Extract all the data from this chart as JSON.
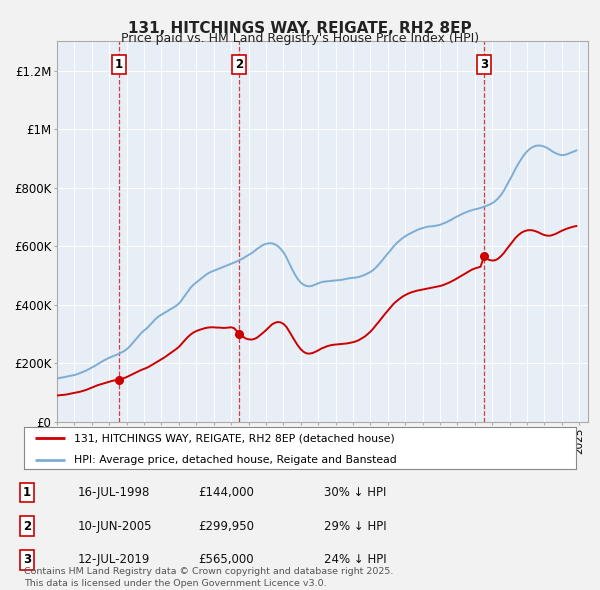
{
  "title": "131, HITCHINGS WAY, REIGATE, RH2 8EP",
  "subtitle": "Price paid vs. HM Land Registry's House Price Index (HPI)",
  "xlim_start": 1995.0,
  "xlim_end": 2025.5,
  "ylim_min": 0,
  "ylim_max": 1300000,
  "background_color": "#f2f2f2",
  "plot_bg_color": "#e8eef5",
  "sale_dates_num": [
    1998.54,
    2005.44,
    2019.53
  ],
  "sale_prices": [
    144000,
    299950,
    565000
  ],
  "sale_labels": [
    "1",
    "2",
    "3"
  ],
  "hpi_line_color": "#7dadd4",
  "price_line_color": "#cc0000",
  "legend_entries": [
    "131, HITCHINGS WAY, REIGATE, RH2 8EP (detached house)",
    "HPI: Average price, detached house, Reigate and Banstead"
  ],
  "footer_lines": [
    "Contains HM Land Registry data © Crown copyright and database right 2025.",
    "This data is licensed under the Open Government Licence v3.0."
  ],
  "table_rows": [
    [
      "1",
      "16-JUL-1998",
      "£144,000",
      "30% ↓ HPI"
    ],
    [
      "2",
      "10-JUN-2005",
      "£299,950",
      "29% ↓ HPI"
    ],
    [
      "3",
      "12-JUL-2019",
      "£565,000",
      "24% ↓ HPI"
    ]
  ],
  "yticks": [
    0,
    200000,
    400000,
    600000,
    800000,
    1000000,
    1200000
  ],
  "ytick_labels": [
    "£0",
    "£200K",
    "£400K",
    "£600K",
    "£800K",
    "£1M",
    "£1.2M"
  ],
  "hpi_x": [
    1995.0,
    1995.17,
    1995.33,
    1995.5,
    1995.67,
    1995.83,
    1996.0,
    1996.17,
    1996.33,
    1996.5,
    1996.67,
    1996.83,
    1997.0,
    1997.17,
    1997.33,
    1997.5,
    1997.67,
    1997.83,
    1998.0,
    1998.17,
    1998.33,
    1998.5,
    1998.67,
    1998.83,
    1999.0,
    1999.17,
    1999.33,
    1999.5,
    1999.67,
    1999.83,
    2000.0,
    2000.17,
    2000.33,
    2000.5,
    2000.67,
    2000.83,
    2001.0,
    2001.17,
    2001.33,
    2001.5,
    2001.67,
    2001.83,
    2002.0,
    2002.17,
    2002.33,
    2002.5,
    2002.67,
    2002.83,
    2003.0,
    2003.17,
    2003.33,
    2003.5,
    2003.67,
    2003.83,
    2004.0,
    2004.17,
    2004.33,
    2004.5,
    2004.67,
    2004.83,
    2005.0,
    2005.17,
    2005.33,
    2005.5,
    2005.67,
    2005.83,
    2006.0,
    2006.17,
    2006.33,
    2006.5,
    2006.67,
    2006.83,
    2007.0,
    2007.17,
    2007.33,
    2007.5,
    2007.67,
    2007.83,
    2008.0,
    2008.17,
    2008.33,
    2008.5,
    2008.67,
    2008.83,
    2009.0,
    2009.17,
    2009.33,
    2009.5,
    2009.67,
    2009.83,
    2010.0,
    2010.17,
    2010.33,
    2010.5,
    2010.67,
    2010.83,
    2011.0,
    2011.17,
    2011.33,
    2011.5,
    2011.67,
    2011.83,
    2012.0,
    2012.17,
    2012.33,
    2012.5,
    2012.67,
    2012.83,
    2013.0,
    2013.17,
    2013.33,
    2013.5,
    2013.67,
    2013.83,
    2014.0,
    2014.17,
    2014.33,
    2014.5,
    2014.67,
    2014.83,
    2015.0,
    2015.17,
    2015.33,
    2015.5,
    2015.67,
    2015.83,
    2016.0,
    2016.17,
    2016.33,
    2016.5,
    2016.67,
    2016.83,
    2017.0,
    2017.17,
    2017.33,
    2017.5,
    2017.67,
    2017.83,
    2018.0,
    2018.17,
    2018.33,
    2018.5,
    2018.67,
    2018.83,
    2019.0,
    2019.17,
    2019.33,
    2019.5,
    2019.67,
    2019.83,
    2020.0,
    2020.17,
    2020.33,
    2020.5,
    2020.67,
    2020.83,
    2021.0,
    2021.17,
    2021.33,
    2021.5,
    2021.67,
    2021.83,
    2022.0,
    2022.17,
    2022.33,
    2022.5,
    2022.67,
    2022.83,
    2023.0,
    2023.17,
    2023.33,
    2023.5,
    2023.67,
    2023.83,
    2024.0,
    2024.17,
    2024.33,
    2024.5,
    2024.67,
    2024.83
  ],
  "hpi_y": [
    148000,
    150000,
    152000,
    154000,
    156000,
    158000,
    160000,
    163000,
    167000,
    171000,
    175000,
    180000,
    185000,
    191000,
    197000,
    203000,
    209000,
    214000,
    219000,
    223000,
    227000,
    231000,
    236000,
    241000,
    248000,
    257000,
    268000,
    280000,
    292000,
    303000,
    312000,
    320000,
    330000,
    341000,
    352000,
    360000,
    366000,
    372000,
    378000,
    384000,
    390000,
    396000,
    404000,
    416000,
    430000,
    444000,
    458000,
    468000,
    476000,
    484000,
    492000,
    500000,
    507000,
    512000,
    516000,
    520000,
    524000,
    528000,
    532000,
    536000,
    540000,
    544000,
    548000,
    553000,
    558000,
    564000,
    570000,
    576000,
    583000,
    591000,
    598000,
    604000,
    608000,
    610000,
    610000,
    607000,
    601000,
    592000,
    580000,
    563000,
    543000,
    522000,
    503000,
    488000,
    476000,
    468000,
    464000,
    463000,
    465000,
    469000,
    473000,
    477000,
    479000,
    480000,
    481000,
    482000,
    483000,
    484000,
    485000,
    487000,
    489000,
    491000,
    492000,
    493000,
    495000,
    498000,
    502000,
    507000,
    512000,
    519000,
    528000,
    539000,
    551000,
    563000,
    575000,
    587000,
    599000,
    610000,
    619000,
    627000,
    634000,
    640000,
    645000,
    650000,
    655000,
    659000,
    662000,
    665000,
    667000,
    668000,
    669000,
    671000,
    673000,
    677000,
    681000,
    686000,
    691000,
    697000,
    702000,
    707000,
    712000,
    716000,
    720000,
    723000,
    726000,
    728000,
    731000,
    734000,
    738000,
    742000,
    747000,
    754000,
    763000,
    775000,
    790000,
    808000,
    826000,
    845000,
    864000,
    882000,
    898000,
    912000,
    924000,
    933000,
    939000,
    943000,
    944000,
    943000,
    940000,
    935000,
    929000,
    922000,
    917000,
    913000,
    911000,
    912000,
    915000,
    919000,
    923000,
    927000
  ],
  "price_x": [
    1995.0,
    1995.17,
    1995.33,
    1995.5,
    1995.67,
    1995.83,
    1996.0,
    1996.17,
    1996.33,
    1996.5,
    1996.67,
    1996.83,
    1997.0,
    1997.17,
    1997.33,
    1997.5,
    1997.67,
    1997.83,
    1998.0,
    1998.17,
    1998.33,
    1998.54,
    1998.67,
    1998.83,
    1999.0,
    1999.17,
    1999.33,
    1999.5,
    1999.67,
    1999.83,
    2000.0,
    2000.17,
    2000.33,
    2000.5,
    2000.67,
    2000.83,
    2001.0,
    2001.17,
    2001.33,
    2001.5,
    2001.67,
    2001.83,
    2002.0,
    2002.17,
    2002.33,
    2002.5,
    2002.67,
    2002.83,
    2003.0,
    2003.17,
    2003.33,
    2003.5,
    2003.67,
    2003.83,
    2004.0,
    2004.17,
    2004.33,
    2004.5,
    2004.67,
    2004.83,
    2005.0,
    2005.17,
    2005.33,
    2005.44,
    2005.67,
    2005.83,
    2006.0,
    2006.17,
    2006.33,
    2006.5,
    2006.67,
    2006.83,
    2007.0,
    2007.17,
    2007.33,
    2007.5,
    2007.67,
    2007.83,
    2008.0,
    2008.17,
    2008.33,
    2008.5,
    2008.67,
    2008.83,
    2009.0,
    2009.17,
    2009.33,
    2009.5,
    2009.67,
    2009.83,
    2010.0,
    2010.17,
    2010.33,
    2010.5,
    2010.67,
    2010.83,
    2011.0,
    2011.17,
    2011.33,
    2011.5,
    2011.67,
    2011.83,
    2012.0,
    2012.17,
    2012.33,
    2012.5,
    2012.67,
    2012.83,
    2013.0,
    2013.17,
    2013.33,
    2013.5,
    2013.67,
    2013.83,
    2014.0,
    2014.17,
    2014.33,
    2014.5,
    2014.67,
    2014.83,
    2015.0,
    2015.17,
    2015.33,
    2015.5,
    2015.67,
    2015.83,
    2016.0,
    2016.17,
    2016.33,
    2016.5,
    2016.67,
    2016.83,
    2017.0,
    2017.17,
    2017.33,
    2017.5,
    2017.67,
    2017.83,
    2018.0,
    2018.17,
    2018.33,
    2018.5,
    2018.67,
    2018.83,
    2019.0,
    2019.17,
    2019.33,
    2019.53,
    2019.67,
    2019.83,
    2020.0,
    2020.17,
    2020.33,
    2020.5,
    2020.67,
    2020.83,
    2021.0,
    2021.17,
    2021.33,
    2021.5,
    2021.67,
    2021.83,
    2022.0,
    2022.17,
    2022.33,
    2022.5,
    2022.67,
    2022.83,
    2023.0,
    2023.17,
    2023.33,
    2023.5,
    2023.67,
    2023.83,
    2024.0,
    2024.17,
    2024.33,
    2024.5,
    2024.67,
    2024.83
  ],
  "price_y": [
    90000,
    91000,
    92000,
    93000,
    95000,
    97000,
    99000,
    101000,
    103000,
    106000,
    109000,
    113000,
    117000,
    121000,
    125000,
    128000,
    131000,
    134000,
    137000,
    140000,
    142000,
    144000,
    146000,
    149000,
    153000,
    158000,
    163000,
    168000,
    173000,
    177000,
    181000,
    185000,
    190000,
    196000,
    202000,
    208000,
    214000,
    220000,
    227000,
    234000,
    241000,
    248000,
    256000,
    267000,
    278000,
    289000,
    298000,
    305000,
    310000,
    314000,
    317000,
    320000,
    322000,
    323000,
    323000,
    322000,
    322000,
    321000,
    321000,
    322000,
    323000,
    320000,
    310000,
    299950,
    292000,
    285000,
    282000,
    281000,
    283000,
    288000,
    296000,
    304000,
    313000,
    323000,
    332000,
    338000,
    341000,
    340000,
    335000,
    325000,
    310000,
    293000,
    276000,
    261000,
    248000,
    239000,
    234000,
    233000,
    235000,
    239000,
    244000,
    250000,
    254000,
    258000,
    261000,
    263000,
    264000,
    265000,
    266000,
    267000,
    268000,
    270000,
    272000,
    275000,
    279000,
    285000,
    291000,
    299000,
    308000,
    319000,
    331000,
    343000,
    356000,
    368000,
    380000,
    392000,
    403000,
    412000,
    420000,
    427000,
    433000,
    438000,
    442000,
    445000,
    448000,
    450000,
    452000,
    454000,
    456000,
    458000,
    460000,
    462000,
    464000,
    467000,
    471000,
    475000,
    480000,
    485000,
    491000,
    497000,
    503000,
    509000,
    515000,
    520000,
    524000,
    527000,
    530000,
    565000,
    558000,
    553000,
    551000,
    552000,
    557000,
    566000,
    577000,
    590000,
    603000,
    616000,
    628000,
    638000,
    646000,
    651000,
    654000,
    655000,
    654000,
    651000,
    647000,
    642000,
    638000,
    636000,
    636000,
    639000,
    643000,
    648000,
    653000,
    657000,
    661000,
    664000,
    667000,
    669000
  ]
}
